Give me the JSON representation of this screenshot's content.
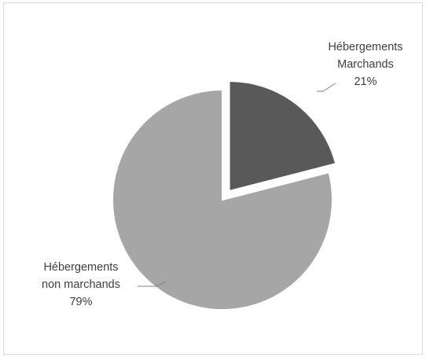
{
  "chart_data": {
    "type": "pie",
    "title": "",
    "slices": [
      {
        "label_lines": [
          "Hébergements",
          "Marchands"
        ],
        "value": 21,
        "value_label": "21%",
        "color": "#595959",
        "exploded": true
      },
      {
        "label_lines": [
          "Hébergements",
          "non marchands"
        ],
        "value": 79,
        "value_label": "79%",
        "color": "#a6a6a6",
        "exploded": false
      }
    ],
    "start": "12 o'clock",
    "direction": "clockwise",
    "legend": "none",
    "slice_border_color": "#ffffff",
    "leader_line_color": "#7f7f7f",
    "label_color": "#404040",
    "border_color": "#d9d9d9"
  }
}
